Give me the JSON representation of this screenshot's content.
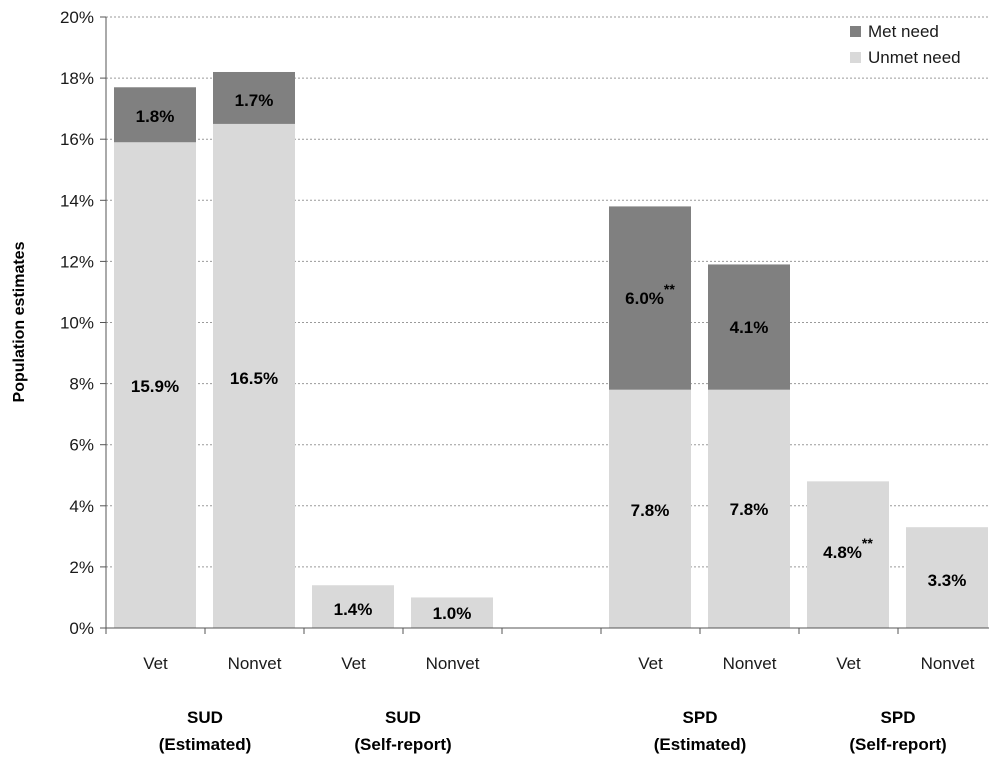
{
  "chart_data": {
    "type": "bar",
    "stacked": true,
    "ylabel": "Population estimates",
    "ylim": [
      0,
      20
    ],
    "yticks": [
      "0%",
      "2%",
      "4%",
      "6%",
      "8%",
      "10%",
      "12%",
      "14%",
      "16%",
      "18%",
      "20%"
    ],
    "grid": true,
    "legend_position": "top-right",
    "categories": [
      "Vet",
      "Nonvet",
      "Vet",
      "Nonvet",
      "Vet",
      "Nonvet",
      "Vet",
      "Nonvet"
    ],
    "groups": [
      {
        "line1": "SUD",
        "line2": "(Estimated)"
      },
      {
        "line1": "SUD",
        "line2": "(Self-report)"
      },
      {
        "line1": "SPD",
        "line2": "(Estimated)"
      },
      {
        "line1": "SPD",
        "line2": "(Self-report)"
      }
    ],
    "series": [
      {
        "name": "Unmet need",
        "color": "#d9d9d9",
        "values": [
          15.9,
          16.5,
          1.4,
          1.0,
          7.8,
          7.8,
          4.8,
          3.3
        ],
        "labels": [
          "15.9%",
          "16.5%",
          "1.4%",
          "1.0%",
          "7.8%",
          "7.8%",
          "4.8%",
          "3.3%"
        ],
        "sig": [
          "",
          "",
          "",
          "",
          "",
          "",
          "**",
          ""
        ]
      },
      {
        "name": "Met need",
        "color": "#808080",
        "values": [
          1.8,
          1.7,
          null,
          null,
          6.0,
          4.1,
          null,
          null
        ],
        "labels": [
          "1.8%",
          "1.7%",
          "",
          "",
          "6.0%",
          "4.1%",
          "",
          ""
        ],
        "sig": [
          "",
          "",
          "",
          "",
          "**",
          "",
          "",
          ""
        ]
      }
    ]
  }
}
